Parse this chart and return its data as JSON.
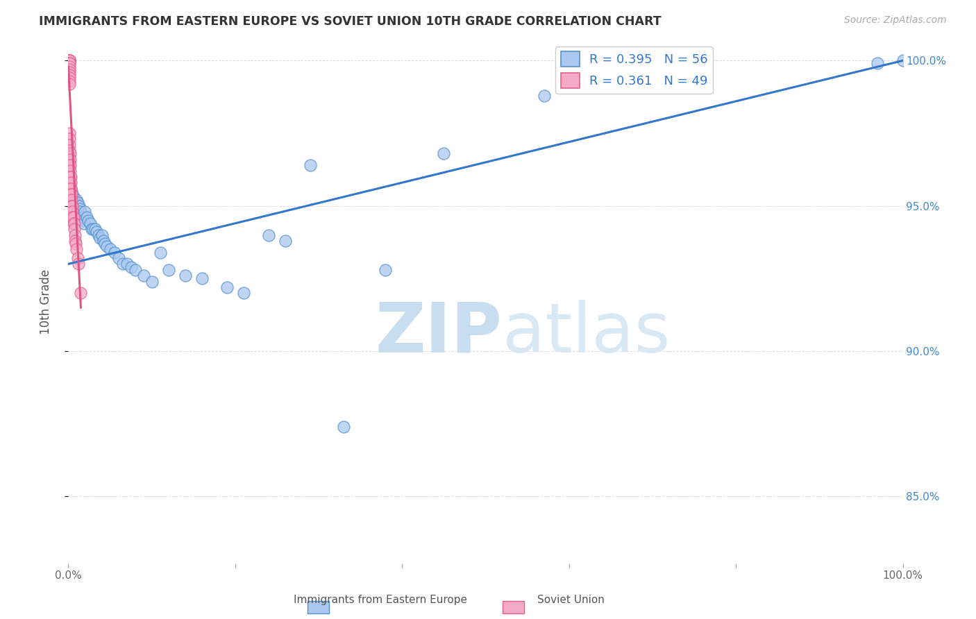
{
  "title": "IMMIGRANTS FROM EASTERN EUROPE VS SOVIET UNION 10TH GRADE CORRELATION CHART",
  "source": "Source: ZipAtlas.com",
  "ylabel": "10th Grade",
  "xlim": [
    0.0,
    1.0
  ],
  "ylim": [
    0.827,
    1.007
  ],
  "x_ticks": [
    0.0,
    0.2,
    0.4,
    0.6,
    0.8,
    1.0
  ],
  "x_tick_labels": [
    "0.0%",
    "",
    "",
    "",
    "",
    "100.0%"
  ],
  "y_ticks_right": [
    0.85,
    0.9,
    0.95,
    1.0
  ],
  "y_tick_labels_right": [
    "85.0%",
    "90.0%",
    "95.0%",
    "100.0%"
  ],
  "legend_r1": "R = 0.395",
  "legend_n1": "N = 56",
  "legend_r2": "R = 0.361",
  "legend_n2": "N = 49",
  "blue_color": "#aac8f0",
  "pink_color": "#f5aac5",
  "blue_edge_color": "#5590d0",
  "pink_edge_color": "#e06090",
  "blue_line_color": "#3377cc",
  "pink_line_color": "#dd5588",
  "title_color": "#333333",
  "right_label_color": "#4488cc",
  "watermark_color": "#ddeeff",
  "background_color": "#ffffff",
  "grid_color": "#dddddd",
  "blue_x": [
    0.002,
    0.003,
    0.004,
    0.005,
    0.006,
    0.007,
    0.008,
    0.009,
    0.01,
    0.011,
    0.012,
    0.013,
    0.014,
    0.015,
    0.016,
    0.017,
    0.018,
    0.019,
    0.02,
    0.022,
    0.024,
    0.026,
    0.028,
    0.03,
    0.032,
    0.034,
    0.036,
    0.038,
    0.04,
    0.042,
    0.044,
    0.046,
    0.05,
    0.055,
    0.06,
    0.065,
    0.07,
    0.075,
    0.08,
    0.09,
    0.1,
    0.11,
    0.12,
    0.14,
    0.16,
    0.19,
    0.21,
    0.24,
    0.26,
    0.29,
    0.33,
    0.38,
    0.45,
    0.57,
    0.97,
    1.0
  ],
  "blue_y": [
    0.958,
    0.956,
    0.955,
    0.954,
    0.953,
    0.952,
    0.951,
    0.95,
    0.952,
    0.951,
    0.95,
    0.95,
    0.949,
    0.948,
    0.947,
    0.946,
    0.945,
    0.944,
    0.948,
    0.946,
    0.945,
    0.944,
    0.942,
    0.942,
    0.942,
    0.941,
    0.94,
    0.939,
    0.94,
    0.938,
    0.937,
    0.936,
    0.935,
    0.934,
    0.932,
    0.93,
    0.93,
    0.929,
    0.928,
    0.926,
    0.924,
    0.934,
    0.928,
    0.926,
    0.925,
    0.922,
    0.92,
    0.94,
    0.938,
    0.964,
    0.874,
    0.928,
    0.968,
    0.988,
    0.999,
    1.0
  ],
  "pink_x": [
    0.001,
    0.001,
    0.001,
    0.001,
    0.001,
    0.001,
    0.001,
    0.001,
    0.001,
    0.001,
    0.001,
    0.001,
    0.001,
    0.001,
    0.001,
    0.001,
    0.001,
    0.001,
    0.001,
    0.001,
    0.001,
    0.002,
    0.002,
    0.002,
    0.002,
    0.002,
    0.002,
    0.003,
    0.003,
    0.003,
    0.003,
    0.003,
    0.004,
    0.004,
    0.004,
    0.005,
    0.005,
    0.005,
    0.006,
    0.006,
    0.007,
    0.007,
    0.008,
    0.008,
    0.009,
    0.01,
    0.011,
    0.012,
    0.015
  ],
  "pink_y": [
    1.0,
    1.0,
    1.0,
    1.0,
    1.0,
    0.999,
    0.999,
    0.998,
    0.997,
    0.996,
    0.995,
    0.994,
    0.993,
    0.992,
    0.975,
    0.973,
    0.971,
    0.969,
    0.967,
    0.965,
    0.963,
    0.968,
    0.966,
    0.964,
    0.962,
    0.96,
    0.958,
    0.96,
    0.958,
    0.956,
    0.954,
    0.952,
    0.954,
    0.952,
    0.95,
    0.95,
    0.948,
    0.946,
    0.946,
    0.944,
    0.944,
    0.942,
    0.94,
    0.938,
    0.937,
    0.935,
    0.932,
    0.93,
    0.92
  ],
  "blue_line_x": [
    0.0,
    1.0
  ],
  "blue_line_y": [
    0.93,
    1.0
  ],
  "pink_line_x": [
    0.0,
    0.015
  ],
  "pink_line_y": [
    0.998,
    0.915
  ]
}
